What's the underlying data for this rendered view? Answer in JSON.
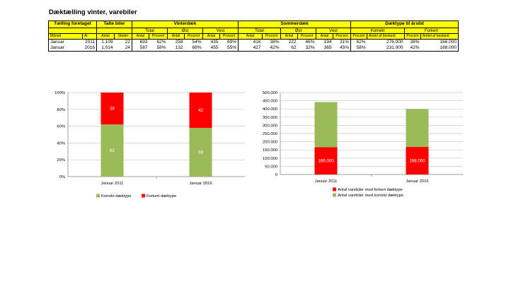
{
  "title": "Dæktælling vinter, varebiler",
  "table": {
    "group_headers": [
      "Tælling foretaget",
      "Talte biler",
      "Vinterdæk",
      "Sommerdæk",
      "Dæktype til årstid"
    ],
    "sub_headers": [
      "Total",
      "Øst",
      "Vest",
      "Total",
      "Øst",
      "Vest",
      "Korrekt",
      "Forkert"
    ],
    "col_headers": [
      "Måned",
      "År",
      "Antal",
      "Steder",
      "Antal",
      "Procent",
      "Antal",
      "Procent",
      "Antal",
      "Procent",
      "Antal",
      "Procent",
      "Antal",
      "Procent",
      "Antal",
      "Procent",
      "Procent",
      "Andel af bestand",
      "Procent",
      "Andel af bestand"
    ],
    "rows": [
      [
        "Januar",
        "2011",
        "1.109",
        "22",
        "693",
        "62%",
        "258",
        "54%",
        "435",
        "69%",
        "416",
        "38%",
        "222",
        "46%",
        "194",
        "31%",
        "62%",
        "276.000",
        "38%",
        "166.000"
      ],
      [
        "Januar",
        "2016",
        "1.014",
        "24",
        "587",
        "58%",
        "132",
        "68%",
        "455",
        "55%",
        "427",
        "42%",
        "62",
        "32%",
        "365",
        "45%",
        "58%",
        "231.000",
        "42%",
        "168.000"
      ]
    ]
  },
  "colors": {
    "correct": "#9bbb59",
    "wrong": "#ff0000",
    "header": "#ffff00"
  },
  "chart_data": [
    {
      "type": "bar",
      "stacked": true,
      "categories": [
        "Januar 2011",
        "Januar 2016"
      ],
      "series": [
        {
          "name": "Korrekt dæktype",
          "values": [
            62,
            58
          ]
        },
        {
          "name": "Forkert dæktype",
          "values": [
            38,
            42
          ]
        }
      ],
      "yticks": [
        "0%",
        "20%",
        "40%",
        "60%",
        "80%",
        "100%"
      ],
      "ylim": [
        0,
        100
      ],
      "grid": true,
      "legend": "bottom"
    },
    {
      "type": "bar",
      "stacked": true,
      "categories": [
        "Januar 2011",
        "Januar 2016"
      ],
      "series": [
        {
          "name": "Antal varebiler med forkert dæktype",
          "values": [
            166000,
            168000
          ],
          "labels": [
            "166.000",
            "168.000"
          ]
        },
        {
          "name": "Antal varebiler med korrekt dæktype",
          "values": [
            276000,
            231000
          ]
        }
      ],
      "yticks": [
        "0",
        "50.000",
        "100.000",
        "150.000",
        "200.000",
        "250.000",
        "300.000",
        "350.000",
        "400.000",
        "450.000",
        "500.000"
      ],
      "ylim": [
        0,
        500000
      ],
      "grid": true,
      "legend": "bottom"
    }
  ]
}
